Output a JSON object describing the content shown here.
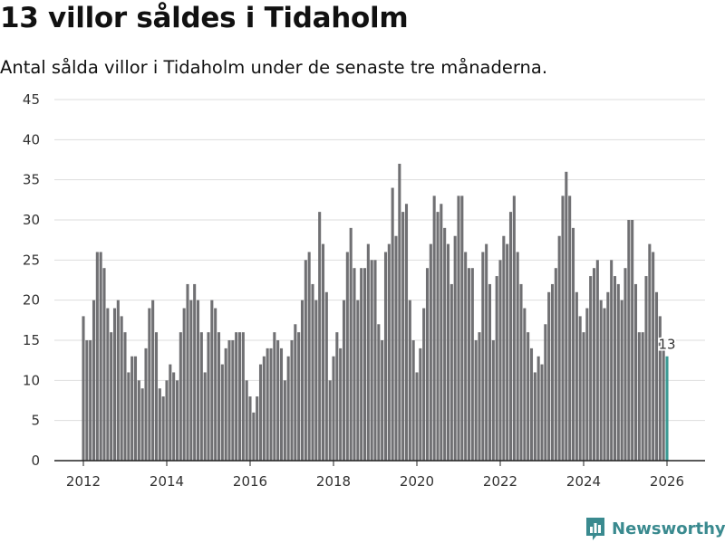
{
  "header": {
    "title": "13 villor såldes i Tidaholm",
    "subtitle": "Antal sålda villor i Tidaholm under de senaste tre månaderna."
  },
  "brand": {
    "name": "Newsworthy",
    "logo_icon": "bar-chart-logo-icon",
    "color": "#3a8a8f"
  },
  "colors": {
    "bar": "#707073",
    "highlight": "#3a9a93",
    "grid": "#dddddd",
    "axis": "#222222"
  },
  "chart_data": {
    "type": "bar",
    "title": "13 villor såldes i Tidaholm",
    "subtitle": "Antal sålda villor i Tidaholm under de senaste tre månaderna.",
    "xlabel": "",
    "ylabel": "",
    "ylim": [
      0,
      45
    ],
    "yticks": [
      0,
      5,
      10,
      15,
      20,
      25,
      30,
      35,
      40,
      45
    ],
    "xticks": [
      "2012",
      "2014",
      "2016",
      "2018",
      "2020",
      "2022",
      "2024",
      "2026"
    ],
    "x_start": "2012-01",
    "x_end": "2026-03",
    "grid": true,
    "highlight_label": "13",
    "values": [
      18,
      15,
      15,
      20,
      26,
      26,
      24,
      19,
      16,
      19,
      20,
      18,
      16,
      11,
      13,
      13,
      10,
      9,
      14,
      19,
      20,
      16,
      9,
      8,
      10,
      12,
      11,
      10,
      16,
      19,
      22,
      20,
      22,
      20,
      16,
      11,
      16,
      20,
      19,
      16,
      12,
      14,
      15,
      15,
      16,
      16,
      16,
      10,
      8,
      6,
      8,
      12,
      13,
      14,
      14,
      16,
      15,
      14,
      10,
      13,
      15,
      17,
      16,
      20,
      25,
      26,
      22,
      20,
      31,
      27,
      21,
      10,
      13,
      16,
      14,
      20,
      26,
      29,
      24,
      20,
      24,
      24,
      27,
      25,
      25,
      17,
      15,
      26,
      27,
      34,
      28,
      37,
      31,
      32,
      20,
      15,
      11,
      14,
      19,
      24,
      27,
      33,
      31,
      32,
      29,
      27,
      22,
      28,
      33,
      33,
      26,
      24,
      24,
      15,
      16,
      26,
      27,
      22,
      15,
      23,
      25,
      28,
      27,
      31,
      33,
      26,
      22,
      19,
      16,
      14,
      11,
      13,
      12,
      17,
      21,
      22,
      24,
      28,
      33,
      36,
      33,
      29,
      21,
      18,
      16,
      19,
      23,
      24,
      25,
      20,
      19,
      21,
      25,
      23,
      22,
      20,
      24,
      30,
      30,
      22,
      16,
      16,
      23,
      27,
      26,
      21,
      18,
      14,
      13
    ]
  }
}
